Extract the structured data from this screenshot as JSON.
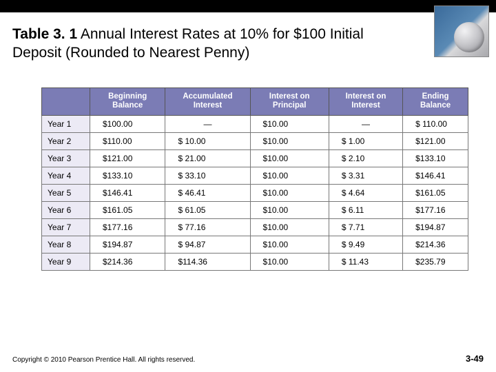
{
  "title_bold": "Table 3. 1",
  "title_rest": "  Annual Interest Rates at 10% for $100 Initial Deposit (Rounded to Nearest Penny)",
  "table": {
    "columns": [
      "Beginning Balance",
      "Accumulated Interest",
      "Interest on Principal",
      "Interest on Interest",
      "Ending Balance"
    ],
    "rows": [
      {
        "label": "Year 1",
        "begin": "$100.00",
        "acc": "—",
        "iop": "$10.00",
        "ioi": "—",
        "end": "$ 110.00"
      },
      {
        "label": "Year 2",
        "begin": "$110.00",
        "acc": "$ 10.00",
        "iop": "$10.00",
        "ioi": "$ 1.00",
        "end": "$121.00"
      },
      {
        "label": "Year 3",
        "begin": "$121.00",
        "acc": "$ 21.00",
        "iop": "$10.00",
        "ioi": "$ 2.10",
        "end": "$133.10"
      },
      {
        "label": "Year 4",
        "begin": "$133.10",
        "acc": "$ 33.10",
        "iop": "$10.00",
        "ioi": "$ 3.31",
        "end": "$146.41"
      },
      {
        "label": "Year 5",
        "begin": "$146.41",
        "acc": "$ 46.41",
        "iop": "$10.00",
        "ioi": "$ 4.64",
        "end": "$161.05"
      },
      {
        "label": "Year 6",
        "begin": "$161.05",
        "acc": "$ 61.05",
        "iop": "$10.00",
        "ioi": "$ 6.11",
        "end": "$177.16"
      },
      {
        "label": "Year 7",
        "begin": "$177.16",
        "acc": "$ 77.16",
        "iop": "$10.00",
        "ioi": "$ 7.71",
        "end": "$194.87"
      },
      {
        "label": "Year 8",
        "begin": "$194.87",
        "acc": "$ 94.87",
        "iop": "$10.00",
        "ioi": "$ 9.49",
        "end": "$214.36"
      },
      {
        "label": "Year 9",
        "begin": "$214.36",
        "acc": "$114.36",
        "iop": "$10.00",
        "ioi": "$ 11.43",
        "end": "$235.79"
      }
    ]
  },
  "copyright": "Copyright © 2010 Pearson Prentice Hall. All rights reserved.",
  "page": "3-49",
  "colors": {
    "header_bg": "#7b7cb5",
    "rowlabel_bg": "#eceaf5",
    "top_bar": "#000000"
  }
}
